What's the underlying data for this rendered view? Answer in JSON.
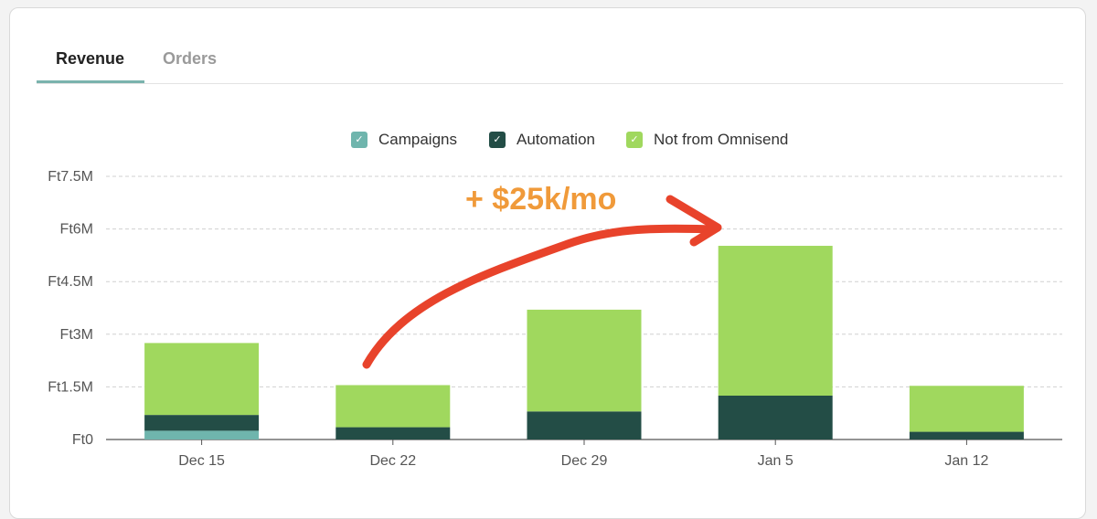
{
  "tabs": [
    {
      "label": "Revenue",
      "active": true
    },
    {
      "label": "Orders",
      "active": false
    }
  ],
  "legend": [
    {
      "label": "Campaigns",
      "color": "#6fb5ad"
    },
    {
      "label": "Automation",
      "color": "#234d46"
    },
    {
      "label": "Not from Omnisend",
      "color": "#a0d85e"
    }
  ],
  "annotation": {
    "text": "+ $25k/mo",
    "arrow_color": "#e8432b",
    "text_color": "#f09a3a"
  },
  "chart_data": {
    "type": "bar",
    "stacked": true,
    "categories": [
      "Dec 15",
      "Dec 22",
      "Dec 29",
      "Jan 5",
      "Jan 12"
    ],
    "series": [
      {
        "name": "Campaigns",
        "color": "#6fb5ad",
        "values": [
          0.25,
          0,
          0,
          0,
          0
        ]
      },
      {
        "name": "Automation",
        "color": "#234d46",
        "values": [
          0.45,
          0.35,
          0.8,
          1.25,
          0.22
        ]
      },
      {
        "name": "Not from Omnisend",
        "color": "#a0d85e",
        "values": [
          2.05,
          1.2,
          2.9,
          4.27,
          1.31
        ]
      }
    ],
    "yticks": [
      "Ft0",
      "Ft1.5M",
      "Ft3M",
      "Ft4.5M",
      "Ft6M",
      "Ft7.5M"
    ],
    "ytick_values": [
      0,
      1.5,
      3,
      4.5,
      6,
      7.5
    ],
    "ylim": [
      0,
      7.5
    ],
    "grid": true,
    "legend_position": "top-center"
  }
}
